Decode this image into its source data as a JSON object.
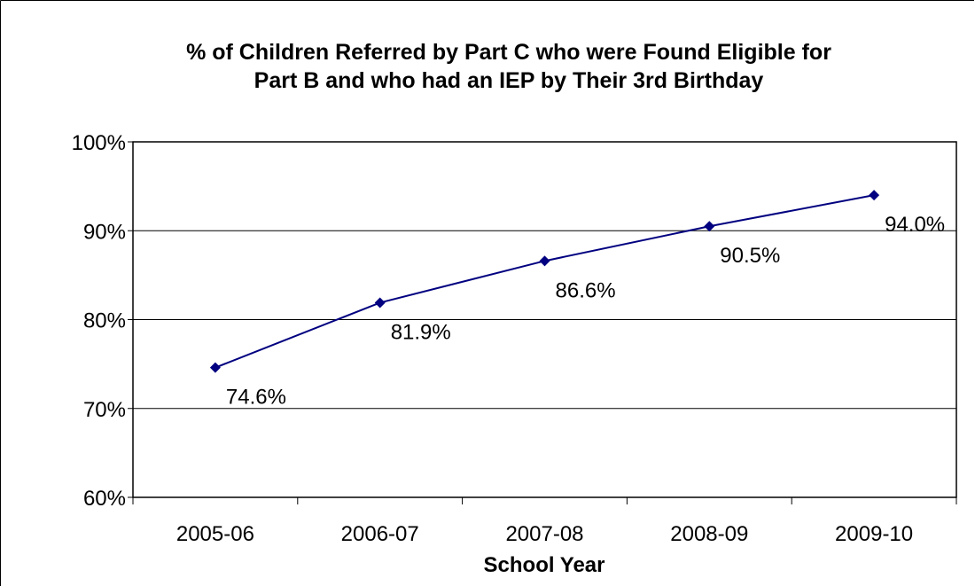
{
  "chart_data": {
    "type": "line",
    "title": [
      "% of Children Referred by Part C who were Found Eligible for",
      "Part B and who had an IEP by Their 3rd Birthday"
    ],
    "xlabel": "School Year",
    "ylabel": "",
    "categories": [
      "2005-06",
      "2006-07",
      "2007-08",
      "2008-09",
      "2009-10"
    ],
    "series": [
      {
        "values": [
          74.6,
          81.9,
          86.6,
          90.5,
          94.0
        ],
        "labels": [
          "74.6%",
          "81.9%",
          "86.6%",
          "90.5%",
          "94.0%"
        ],
        "color": "#000080"
      }
    ],
    "ylim": [
      60,
      100
    ],
    "yticks": [
      60,
      70,
      80,
      90,
      100
    ],
    "ytick_labels": [
      "60%",
      "70%",
      "80%",
      "90%",
      "100%"
    ],
    "grid": "horizontal",
    "legend": "none"
  }
}
